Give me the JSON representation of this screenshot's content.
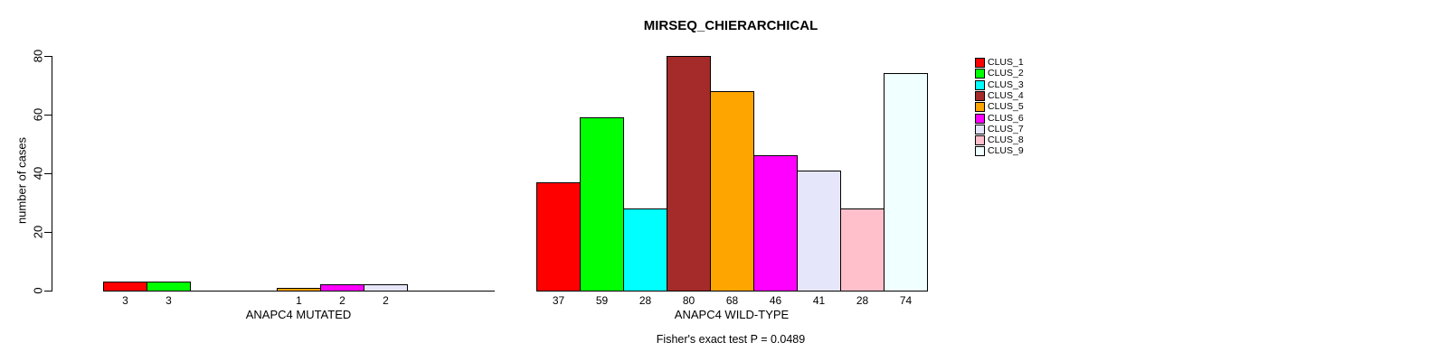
{
  "chart_data": {
    "type": "bar",
    "title": "MIRSEQ_CHIERARCHICAL",
    "ylabel": "number of cases",
    "ylim": [
      0,
      80
    ],
    "yticks": [
      0,
      20,
      40,
      60,
      80
    ],
    "grid": false,
    "legend_position": "right-outside",
    "categories": [
      "CLUS_1",
      "CLUS_2",
      "CLUS_3",
      "CLUS_4",
      "CLUS_5",
      "CLUS_6",
      "CLUS_7",
      "CLUS_8",
      "CLUS_9"
    ],
    "colors": [
      "#ff0000",
      "#00ff00",
      "#00ffff",
      "#a52a2a",
      "#ffa500",
      "#ff00ff",
      "#e6e6fa",
      "#ffc0cb",
      "#f0ffff"
    ],
    "groups": [
      {
        "label": "ANAPC4 MUTATED",
        "values": [
          3,
          3,
          0,
          0,
          1,
          2,
          2,
          0,
          0
        ]
      },
      {
        "label": "ANAPC4 WILD-TYPE",
        "values": [
          37,
          59,
          28,
          80,
          68,
          46,
          41,
          28,
          74
        ]
      }
    ],
    "bar_value_labels": "value shown under each nonzero bar",
    "annotation": "Fisher's exact test P = 0.0489"
  }
}
